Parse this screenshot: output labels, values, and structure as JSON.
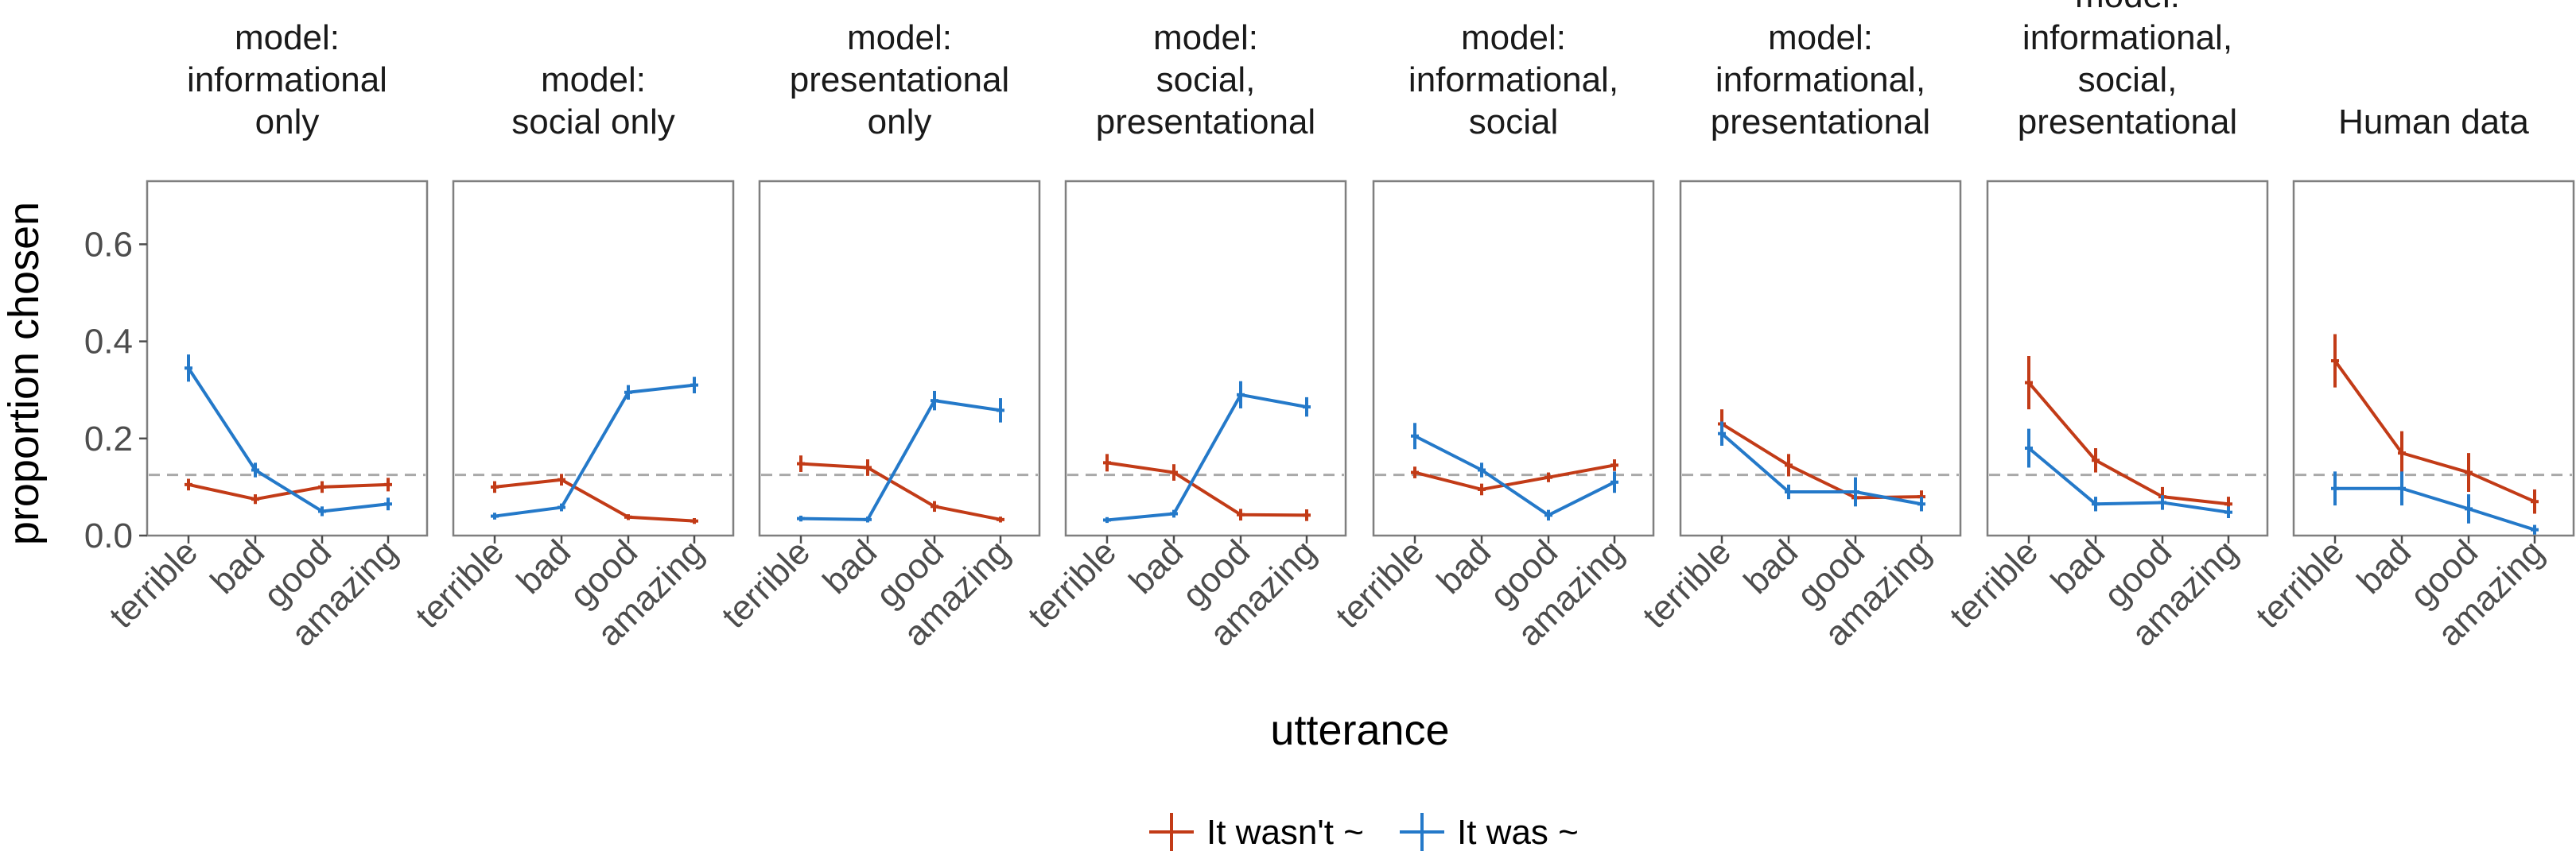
{
  "chart_data": {
    "type": "line",
    "xlabel": "utterance",
    "ylabel": "proportion chosen",
    "categories": [
      "terrible",
      "bad",
      "good",
      "amazing"
    ],
    "ylim": [
      0,
      0.73
    ],
    "yticks": [
      0.0,
      0.2,
      0.4,
      0.6
    ],
    "ytick_labels": [
      "0.0",
      "0.2",
      "0.4",
      "0.6"
    ],
    "reference_line": {
      "y": 0.125,
      "style": "dashed",
      "color": "#a9a9a9"
    },
    "grid": false,
    "legend": {
      "position": "bottom",
      "items": [
        {
          "label": "It wasn't ~",
          "color": "#c23b17"
        },
        {
          "label": "It was ~",
          "color": "#2479c9"
        }
      ]
    },
    "panels": [
      {
        "title_lines": [
          "model:",
          "informational",
          "only"
        ],
        "series": [
          {
            "name": "It wasn't ~",
            "color": "#c23b17",
            "values": [
              0.105,
              0.075,
              0.1,
              0.105
            ],
            "err": [
              0.012,
              0.01,
              0.012,
              0.014
            ]
          },
          {
            "name": "It was ~",
            "color": "#2479c9",
            "values": [
              0.345,
              0.135,
              0.05,
              0.065
            ],
            "err": [
              0.028,
              0.015,
              0.01,
              0.013
            ]
          }
        ]
      },
      {
        "title_lines": [
          "model:",
          "social only"
        ],
        "series": [
          {
            "name": "It wasn't ~",
            "color": "#c23b17",
            "values": [
              0.1,
              0.115,
              0.038,
              0.03
            ],
            "err": [
              0.012,
              0.012,
              0.006,
              0.006
            ]
          },
          {
            "name": "It was ~",
            "color": "#2479c9",
            "values": [
              0.04,
              0.058,
              0.295,
              0.31
            ],
            "err": [
              0.007,
              0.008,
              0.015,
              0.017
            ]
          }
        ]
      },
      {
        "title_lines": [
          "model:",
          "presentational",
          "only"
        ],
        "series": [
          {
            "name": "It wasn't ~",
            "color": "#c23b17",
            "values": [
              0.148,
              0.14,
              0.06,
              0.033
            ],
            "err": [
              0.017,
              0.017,
              0.011,
              0.006
            ]
          },
          {
            "name": "It was ~",
            "color": "#2479c9",
            "values": [
              0.035,
              0.033,
              0.278,
              0.258
            ],
            "err": [
              0.006,
              0.006,
              0.02,
              0.025
            ]
          }
        ]
      },
      {
        "title_lines": [
          "model:",
          "social,",
          "presentational"
        ],
        "series": [
          {
            "name": "It wasn't ~",
            "color": "#c23b17",
            "values": [
              0.15,
              0.13,
              0.043,
              0.042
            ],
            "err": [
              0.018,
              0.017,
              0.012,
              0.012
            ]
          },
          {
            "name": "It was ~",
            "color": "#2479c9",
            "values": [
              0.032,
              0.045,
              0.29,
              0.265
            ],
            "err": [
              0.006,
              0.008,
              0.028,
              0.02
            ]
          }
        ]
      },
      {
        "title_lines": [
          "model:",
          "informational,",
          "social"
        ],
        "series": [
          {
            "name": "It wasn't ~",
            "color": "#c23b17",
            "values": [
              0.13,
              0.095,
              0.12,
              0.145
            ],
            "err": [
              0.012,
              0.012,
              0.01,
              0.012
            ]
          },
          {
            "name": "It was ~",
            "color": "#2479c9",
            "values": [
              0.205,
              0.135,
              0.042,
              0.11
            ],
            "err": [
              0.027,
              0.015,
              0.011,
              0.022
            ]
          }
        ]
      },
      {
        "title_lines": [
          "model:",
          "informational,",
          "presentational"
        ],
        "series": [
          {
            "name": "It wasn't ~",
            "color": "#c23b17",
            "values": [
              0.23,
              0.145,
              0.078,
              0.08
            ],
            "err": [
              0.03,
              0.023,
              0.017,
              0.013
            ]
          },
          {
            "name": "It was ~",
            "color": "#2479c9",
            "values": [
              0.21,
              0.09,
              0.09,
              0.065
            ],
            "err": [
              0.025,
              0.015,
              0.03,
              0.015
            ]
          }
        ]
      },
      {
        "title_lines": [
          "model:",
          "informational,",
          "social,",
          "presentational"
        ],
        "series": [
          {
            "name": "It wasn't ~",
            "color": "#c23b17",
            "values": [
              0.315,
              0.155,
              0.08,
              0.065
            ],
            "err": [
              0.055,
              0.025,
              0.02,
              0.015
            ]
          },
          {
            "name": "It was ~",
            "color": "#2479c9",
            "values": [
              0.18,
              0.065,
              0.068,
              0.048
            ],
            "err": [
              0.04,
              0.015,
              0.015,
              0.012
            ]
          }
        ]
      },
      {
        "title_lines": [
          "Human data"
        ],
        "series": [
          {
            "name": "It wasn't ~",
            "color": "#c23b17",
            "values": [
              0.36,
              0.17,
              0.13,
              0.07
            ],
            "err": [
              0.055,
              0.045,
              0.04,
              0.025
            ]
          },
          {
            "name": "It was ~",
            "color": "#2479c9",
            "values": [
              0.097,
              0.097,
              0.055,
              0.012
            ],
            "err": [
              0.035,
              0.035,
              0.03,
              0.01
            ]
          }
        ]
      }
    ]
  }
}
